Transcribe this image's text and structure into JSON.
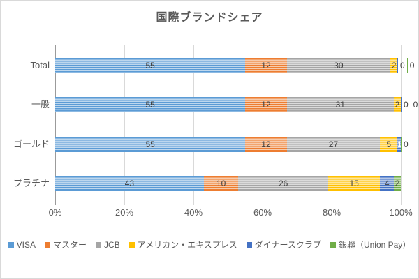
{
  "chart_data": {
    "type": "bar",
    "stacked": true,
    "orientation": "horizontal",
    "title": "国際ブランドシェア",
    "categories": [
      "Total",
      "一般",
      "ゴールド",
      "プラチナ"
    ],
    "series": [
      {
        "name": "VISA",
        "color": "#5B9BD5",
        "light": "#BDD7EE",
        "values": [
          55,
          55,
          55,
          43
        ]
      },
      {
        "name": "マスター",
        "color": "#ED7D31",
        "light": "#F7CBAC",
        "values": [
          12,
          12,
          12,
          10
        ]
      },
      {
        "name": "JCB",
        "color": "#A5A5A5",
        "light": "#DBDBDB",
        "values": [
          30,
          31,
          27,
          26
        ]
      },
      {
        "name": "アメリカン・エキスプレス",
        "color": "#FFC000",
        "light": "#FFE699",
        "values": [
          2,
          2,
          5,
          15
        ]
      },
      {
        "name": "ダイナースクラブ",
        "color": "#4472C4",
        "light": "#B4C7E7",
        "values": [
          0,
          0,
          1,
          4
        ],
        "label_colors": [
          null,
          null,
          "#FFFFFF",
          null
        ]
      },
      {
        "name": "銀聯（Union Pay）",
        "color": "#70AD47",
        "light": "#C6E0B4",
        "values": [
          0,
          0,
          0,
          2
        ]
      }
    ],
    "x_ticks": [
      "0%",
      "20%",
      "40%",
      "60%",
      "80%",
      "100%"
    ],
    "xlim": [
      0,
      100
    ],
    "grid": true,
    "legend_position": "bottom",
    "axis_color": "#9B9B9B",
    "gridline_color": "#D9D9D9",
    "text_color": "#595959",
    "data_label_color": "#404040"
  }
}
